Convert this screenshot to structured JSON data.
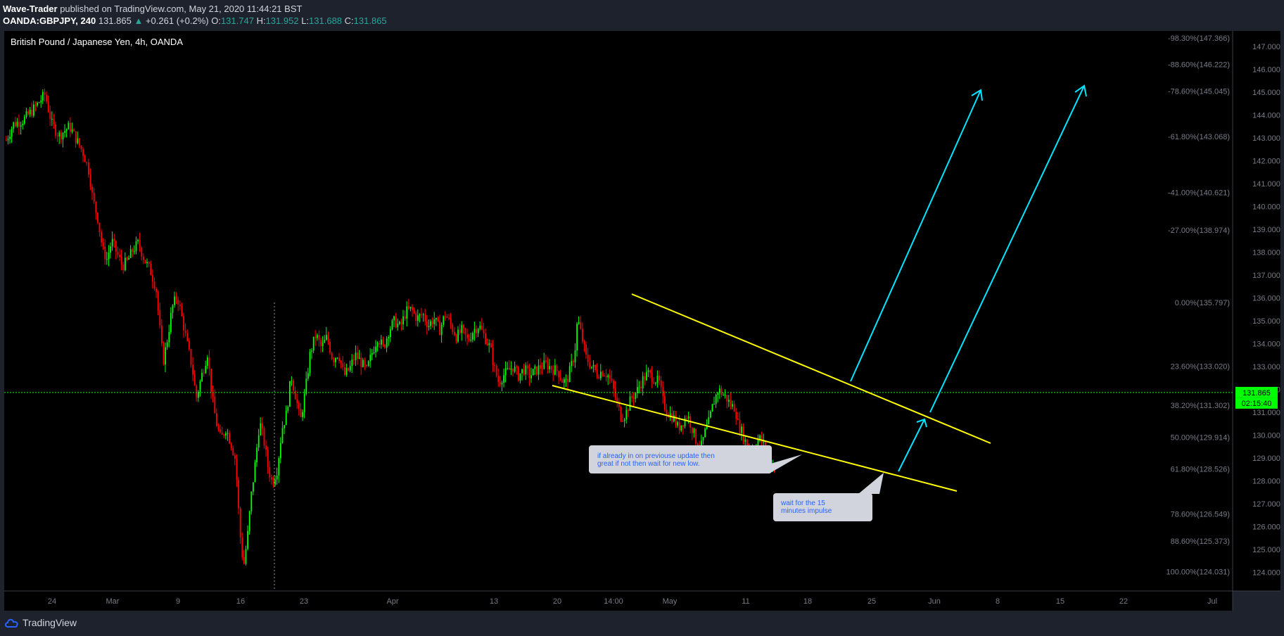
{
  "header": {
    "publisher": "Wave-Trader",
    "published_text": "published on TradingView.com, May 21, 2020 11:44:21 BST",
    "symbol": "OANDA:GBPJPY, 240",
    "last": "131.865",
    "change": "+0.261 (+0.2%)",
    "o_label": "O:",
    "o_value": "131.747",
    "h_label": "H:",
    "h_value": "131.952",
    "l_label": "L:",
    "l_value": "131.688",
    "c_label": "C:",
    "c_value": "131.865"
  },
  "footer": {
    "brand": "TradingView"
  },
  "colors": {
    "background": "#000000",
    "bull": "#00ff00",
    "bear": "#ff0000",
    "trendline": "#ffff00",
    "arrow": "#00e5ff",
    "last_price": "#00ff00",
    "callout_bg": "#d1d4dc",
    "callout_text": "#2962ff"
  },
  "chart_data": {
    "type": "candlestick",
    "title": "British Pound / Japanese Yen, 4h, OANDA",
    "y_axis": {
      "min": 123.4,
      "max": 147.5,
      "ticks": [
        "147.000",
        "146.000",
        "145.000",
        "144.000",
        "143.000",
        "142.000",
        "141.000",
        "140.000",
        "139.000",
        "138.000",
        "137.000",
        "136.000",
        "135.000",
        "134.000",
        "133.000",
        "132.000",
        "131.000",
        "130.000",
        "129.000",
        "128.000",
        "127.000",
        "126.000",
        "125.000",
        "124.000"
      ]
    },
    "x_axis": {
      "ticks": [
        "24",
        "Mar",
        "9",
        "16",
        "23",
        "Apr",
        "13",
        "20",
        "14:00",
        "May",
        "11",
        "18",
        "25",
        "Jun",
        "8",
        "15",
        "22",
        "Jul"
      ]
    },
    "price_path": [
      [
        0,
        142.9
      ],
      [
        10,
        143.6
      ],
      [
        25,
        143.8
      ],
      [
        40,
        144.3
      ],
      [
        55,
        144.9
      ],
      [
        65,
        143.6
      ],
      [
        75,
        143.1
      ],
      [
        90,
        143.5
      ],
      [
        100,
        142.9
      ],
      [
        110,
        142.3
      ],
      [
        118,
        141.5
      ],
      [
        123,
        140.3
      ],
      [
        130,
        139.5
      ],
      [
        137,
        138.1
      ],
      [
        143,
        137.7
      ],
      [
        150,
        138.5
      ],
      [
        158,
        137.9
      ],
      [
        165,
        137.4
      ],
      [
        172,
        137.6
      ],
      [
        180,
        138.1
      ],
      [
        188,
        138.4
      ],
      [
        196,
        137.7
      ],
      [
        206,
        137.1
      ],
      [
        213,
        136.4
      ],
      [
        219,
        134.4
      ],
      [
        223,
        133.2
      ],
      [
        229,
        134.2
      ],
      [
        236,
        135.6
      ],
      [
        243,
        136.1
      ],
      [
        250,
        135.1
      ],
      [
        257,
        134.0
      ],
      [
        264,
        133.0
      ],
      [
        270,
        131.6
      ],
      [
        277,
        132.5
      ],
      [
        286,
        133.6
      ],
      [
        292,
        131.8
      ],
      [
        298,
        130.6
      ],
      [
        305,
        129.8
      ],
      [
        312,
        130.3
      ],
      [
        320,
        129.6
      ],
      [
        326,
        128.9
      ],
      [
        330,
        126.8
      ],
      [
        334,
        125.0
      ],
      [
        338,
        124.4
      ],
      [
        343,
        125.6
      ],
      [
        348,
        127.3
      ],
      [
        354,
        128.8
      ],
      [
        360,
        130.6
      ],
      [
        366,
        129.8
      ],
      [
        372,
        128.6
      ],
      [
        378,
        127.9
      ],
      [
        385,
        128.5
      ],
      [
        392,
        130.3
      ],
      [
        398,
        130.9
      ],
      [
        405,
        132.6
      ],
      [
        412,
        131.6
      ],
      [
        418,
        130.6
      ],
      [
        425,
        131.9
      ],
      [
        432,
        133.6
      ],
      [
        440,
        134.4
      ],
      [
        448,
        133.8
      ],
      [
        456,
        134.3
      ],
      [
        464,
        133.3
      ],
      [
        472,
        133.6
      ],
      [
        480,
        132.6
      ],
      [
        488,
        132.9
      ],
      [
        496,
        133.5
      ],
      [
        504,
        133.2
      ],
      [
        512,
        132.8
      ],
      [
        520,
        133.6
      ],
      [
        528,
        134.3
      ],
      [
        536,
        133.8
      ],
      [
        544,
        134.6
      ],
      [
        552,
        135.0
      ],
      [
        560,
        134.7
      ],
      [
        568,
        135.4
      ],
      [
        576,
        135.5
      ],
      [
        584,
        135.1
      ],
      [
        592,
        135.3
      ],
      [
        600,
        134.8
      ],
      [
        608,
        135.1
      ],
      [
        616,
        134.6
      ],
      [
        624,
        135.3
      ],
      [
        632,
        134.8
      ],
      [
        640,
        134.3
      ],
      [
        648,
        134.6
      ],
      [
        656,
        134.1
      ],
      [
        664,
        134.6
      ],
      [
        672,
        134.8
      ],
      [
        680,
        134.3
      ],
      [
        688,
        133.8
      ],
      [
        694,
        132.9
      ],
      [
        700,
        132.3
      ],
      [
        706,
        132.6
      ],
      [
        713,
        132.8
      ],
      [
        720,
        133.0
      ],
      [
        728,
        132.6
      ],
      [
        736,
        132.9
      ],
      [
        744,
        132.6
      ],
      [
        752,
        132.8
      ],
      [
        760,
        133.0
      ],
      [
        768,
        133.1
      ],
      [
        776,
        132.9
      ],
      [
        784,
        132.8
      ],
      [
        790,
        132.4
      ],
      [
        796,
        132.3
      ],
      [
        802,
        132.9
      ],
      [
        808,
        133.6
      ],
      [
        812,
        135.1
      ],
      [
        818,
        134.3
      ],
      [
        824,
        133.4
      ],
      [
        832,
        133.0
      ],
      [
        840,
        132.7
      ],
      [
        848,
        132.8
      ],
      [
        856,
        132.6
      ],
      [
        862,
        132.1
      ],
      [
        868,
        131.4
      ],
      [
        874,
        130.8
      ],
      [
        880,
        130.9
      ],
      [
        888,
        131.6
      ],
      [
        896,
        131.9
      ],
      [
        904,
        132.4
      ],
      [
        912,
        132.7
      ],
      [
        920,
        132.5
      ],
      [
        928,
        132.3
      ],
      [
        934,
        131.4
      ],
      [
        940,
        131.0
      ],
      [
        948,
        130.8
      ],
      [
        955,
        130.3
      ],
      [
        962,
        130.6
      ],
      [
        968,
        130.9
      ],
      [
        975,
        130.3
      ],
      [
        981,
        129.7
      ],
      [
        987,
        129.4
      ],
      [
        993,
        130.1
      ],
      [
        999,
        130.6
      ],
      [
        1005,
        131.4
      ],
      [
        1012,
        132.0
      ],
      [
        1018,
        131.8
      ],
      [
        1024,
        131.6
      ],
      [
        1030,
        131.3
      ],
      [
        1036,
        131.2
      ],
      [
        1040,
        130.5
      ],
      [
        1046,
        130.1
      ],
      [
        1052,
        129.6
      ],
      [
        1058,
        129.3
      ],
      [
        1064,
        129.5
      ],
      [
        1070,
        129.9
      ],
      [
        1076,
        129.6
      ],
      [
        1082,
        129.0
      ],
      [
        1088,
        128.8
      ],
      [
        1093,
        128.5
      ]
    ]
  },
  "annotations": {
    "callout1": "if already in on previouse update then great if not then wait for new low.",
    "callout2": "wait for the 15 minutes impulse",
    "price_tag": "131.865",
    "countdown": "02:15:40"
  },
  "fib_levels": [
    {
      "label": "-98.30%(147.366)",
      "price": 147.37
    },
    {
      "label": "-88.60%(146.222)",
      "price": 146.222
    },
    {
      "label": "-78.60%(145.045)",
      "price": 145.045
    },
    {
      "label": "-61.80%(143.068)",
      "price": 143.068
    },
    {
      "label": "-41.00%(140.621)",
      "price": 140.621
    },
    {
      "label": "-27.00%(138.974)",
      "price": 138.974
    },
    {
      "label": "0.00%(135.797)",
      "price": 135.797
    },
    {
      "label": "23.60%(133.020)",
      "price": 133.02
    },
    {
      "label": "38.20%(131.302)",
      "price": 131.302
    },
    {
      "label": "50.00%(129.914)",
      "price": 129.914
    },
    {
      "label": "61.80%(128.526)",
      "price": 128.526
    },
    {
      "label": "78.60%(126.549)",
      "price": 126.549
    },
    {
      "label": "88.60%(125.373)",
      "price": 125.373
    },
    {
      "label": "100.00%(124.031)",
      "price": 124.031
    }
  ]
}
